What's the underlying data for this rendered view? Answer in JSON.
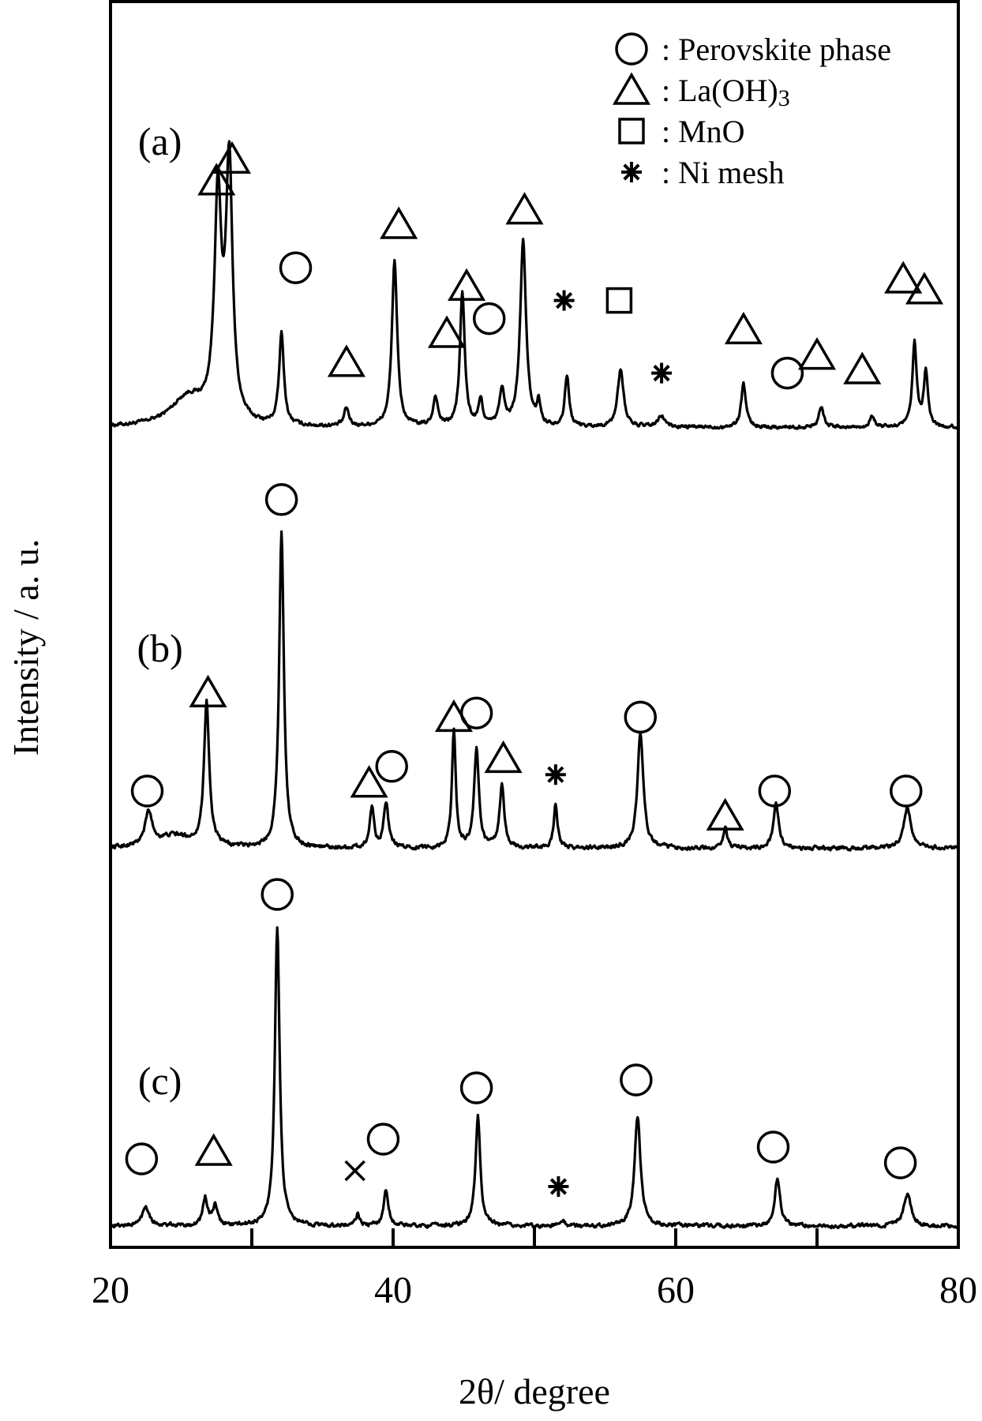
{
  "chart_data": {
    "type": "line",
    "xlabel": "2θ/ degree",
    "ylabel": "Intensity / a. u.",
    "xlim": [
      20,
      80
    ],
    "xticks": [
      20,
      40,
      60,
      80
    ],
    "xtick_labels": [
      "20",
      "40",
      "60",
      "80"
    ],
    "minor_xticks": [
      30,
      50,
      70
    ],
    "grid": false,
    "legend": {
      "placement": "top-right",
      "entries": [
        {
          "symbol": "circle",
          "label": ": Perovskite phase"
        },
        {
          "symbol": "triangle",
          "label": ": La(OH)",
          "subscript": "3"
        },
        {
          "symbol": "square",
          "label": ": MnO"
        },
        {
          "symbol": "star",
          "label": ": Ni mesh"
        }
      ]
    },
    "series": [
      {
        "name": "(a)",
        "label_x": 23.5,
        "label_level": 83,
        "baseline": 4,
        "peaks": [
          {
            "x": 25.5,
            "h": 8,
            "w": 1.5
          },
          {
            "x": 27.6,
            "h": 60,
            "w": 0.3
          },
          {
            "x": 28.4,
            "h": 70,
            "w": 0.28
          },
          {
            "x": 32.1,
            "h": 25,
            "w": 0.2
          },
          {
            "x": 36.7,
            "h": 5,
            "w": 0.2
          },
          {
            "x": 40.1,
            "h": 46,
            "w": 0.22
          },
          {
            "x": 43.0,
            "h": 8,
            "w": 0.2
          },
          {
            "x": 44.9,
            "h": 37,
            "w": 0.2
          },
          {
            "x": 46.2,
            "h": 7,
            "w": 0.18
          },
          {
            "x": 47.7,
            "h": 10,
            "w": 0.2
          },
          {
            "x": 49.2,
            "h": 51,
            "w": 0.25
          },
          {
            "x": 50.3,
            "h": 6,
            "w": 0.15
          },
          {
            "x": 52.3,
            "h": 14,
            "w": 0.18
          },
          {
            "x": 56.1,
            "h": 16,
            "w": 0.25
          },
          {
            "x": 59.0,
            "h": 3,
            "w": 0.3
          },
          {
            "x": 64.8,
            "h": 12,
            "w": 0.2
          },
          {
            "x": 70.3,
            "h": 6,
            "w": 0.2
          },
          {
            "x": 73.9,
            "h": 3,
            "w": 0.2
          },
          {
            "x": 76.9,
            "h": 23,
            "w": 0.18
          },
          {
            "x": 77.7,
            "h": 15,
            "w": 0.18
          }
        ],
        "markers": [
          {
            "symbol": "triangle",
            "x": 27.5,
            "level": 72
          },
          {
            "symbol": "triangle",
            "x": 28.6,
            "level": 78
          },
          {
            "symbol": "circle",
            "x": 33.1,
            "level": 48
          },
          {
            "symbol": "triangle",
            "x": 36.7,
            "level": 22
          },
          {
            "symbol": "triangle",
            "x": 40.4,
            "level": 60
          },
          {
            "symbol": "triangle",
            "x": 43.8,
            "level": 30
          },
          {
            "symbol": "triangle",
            "x": 45.2,
            "level": 43
          },
          {
            "symbol": "circle",
            "x": 46.8,
            "level": 34
          },
          {
            "symbol": "triangle",
            "x": 49.3,
            "level": 64
          },
          {
            "symbol": "star",
            "x": 52.1,
            "level": 39
          },
          {
            "symbol": "square",
            "x": 56.0,
            "level": 39
          },
          {
            "symbol": "star",
            "x": 59.0,
            "level": 19
          },
          {
            "symbol": "triangle",
            "x": 64.8,
            "level": 31
          },
          {
            "symbol": "circle",
            "x": 67.9,
            "level": 19
          },
          {
            "symbol": "triangle",
            "x": 70.0,
            "level": 24
          },
          {
            "symbol": "triangle",
            "x": 73.2,
            "level": 20
          },
          {
            "symbol": "triangle",
            "x": 76.1,
            "level": 45
          },
          {
            "symbol": "triangle",
            "x": 77.6,
            "level": 42
          }
        ]
      },
      {
        "name": "(b)",
        "label_x": 23.5,
        "label_level": 50,
        "baseline": 1,
        "peaks": [
          {
            "x": 22.7,
            "h": 8,
            "w": 0.3
          },
          {
            "x": 24.5,
            "h": 3,
            "w": 1.5
          },
          {
            "x": 26.8,
            "h": 35,
            "w": 0.22
          },
          {
            "x": 32.1,
            "h": 77,
            "w": 0.2
          },
          {
            "x": 38.5,
            "h": 10,
            "w": 0.18
          },
          {
            "x": 39.5,
            "h": 11,
            "w": 0.2
          },
          {
            "x": 44.3,
            "h": 29,
            "w": 0.16
          },
          {
            "x": 45.9,
            "h": 24,
            "w": 0.2
          },
          {
            "x": 47.7,
            "h": 15,
            "w": 0.2
          },
          {
            "x": 51.5,
            "h": 11,
            "w": 0.16
          },
          {
            "x": 57.5,
            "h": 28,
            "w": 0.25
          },
          {
            "x": 63.5,
            "h": 5,
            "w": 0.18
          },
          {
            "x": 67.1,
            "h": 11,
            "w": 0.22
          },
          {
            "x": 76.4,
            "h": 10,
            "w": 0.3
          }
        ],
        "markers": [
          {
            "symbol": "circle",
            "x": 22.6,
            "level": 15
          },
          {
            "symbol": "triangle",
            "x": 26.9,
            "level": 39
          },
          {
            "symbol": "circle",
            "x": 32.1,
            "level": 86
          },
          {
            "symbol": "triangle",
            "x": 38.3,
            "level": 17
          },
          {
            "symbol": "circle",
            "x": 39.9,
            "level": 21
          },
          {
            "symbol": "triangle",
            "x": 44.3,
            "level": 33
          },
          {
            "symbol": "circle",
            "x": 45.9,
            "level": 34
          },
          {
            "symbol": "triangle",
            "x": 47.8,
            "level": 23
          },
          {
            "symbol": "star",
            "x": 51.5,
            "level": 19
          },
          {
            "symbol": "circle",
            "x": 57.5,
            "level": 33
          },
          {
            "symbol": "triangle",
            "x": 63.5,
            "level": 9
          },
          {
            "symbol": "circle",
            "x": 67.0,
            "level": 15
          },
          {
            "symbol": "circle",
            "x": 76.3,
            "level": 15
          }
        ]
      },
      {
        "name": "(c)",
        "label_x": 23.5,
        "label_level": 38,
        "baseline": 1,
        "peaks": [
          {
            "x": 22.5,
            "h": 5,
            "w": 0.3
          },
          {
            "x": 26.7,
            "h": 7,
            "w": 0.2
          },
          {
            "x": 27.4,
            "h": 5,
            "w": 0.2
          },
          {
            "x": 31.8,
            "h": 76,
            "w": 0.2
          },
          {
            "x": 37.5,
            "h": 3,
            "w": 0.15
          },
          {
            "x": 39.5,
            "h": 9,
            "w": 0.2
          },
          {
            "x": 46.0,
            "h": 28,
            "w": 0.2
          },
          {
            "x": 52.0,
            "h": 1.5,
            "w": 0.15
          },
          {
            "x": 57.3,
            "h": 28,
            "w": 0.25
          },
          {
            "x": 67.2,
            "h": 12,
            "w": 0.22
          },
          {
            "x": 76.4,
            "h": 8,
            "w": 0.3
          }
        ],
        "markers": [
          {
            "symbol": "circle",
            "x": 22.2,
            "level": 18
          },
          {
            "symbol": "triangle",
            "x": 27.3,
            "level": 20
          },
          {
            "symbol": "circle",
            "x": 31.8,
            "level": 85
          },
          {
            "symbol": "cross",
            "x": 37.3,
            "level": 15
          },
          {
            "symbol": "circle",
            "x": 39.3,
            "level": 23
          },
          {
            "symbol": "circle",
            "x": 45.9,
            "level": 36
          },
          {
            "symbol": "star",
            "x": 51.7,
            "level": 11
          },
          {
            "symbol": "circle",
            "x": 57.2,
            "level": 38
          },
          {
            "symbol": "circle",
            "x": 66.9,
            "level": 21
          },
          {
            "symbol": "circle",
            "x": 75.9,
            "level": 17
          }
        ]
      }
    ]
  }
}
